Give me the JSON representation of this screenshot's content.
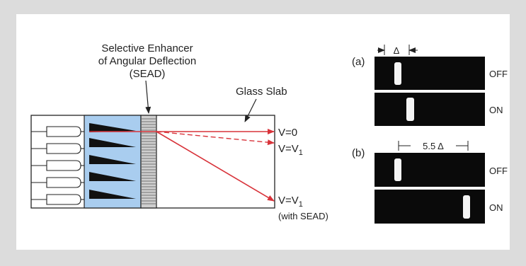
{
  "diagram": {
    "sead_title_line1": "Selective Enhancer",
    "sead_title_line2": "of Angular Deflection",
    "sead_title_line3": "(SEAD)",
    "glass_slab_label": "Glass Slab",
    "v0": "V=0",
    "v1_base": "V=V",
    "v1_sub": "1",
    "v1b_base": "V=V",
    "v1b_sub": "1",
    "with_sead": "(with SEAD)"
  },
  "micrographs": {
    "a_label": "(a)",
    "a_delta": "Δ",
    "a_off": "OFF",
    "a_on": "ON",
    "b_label": "(b)",
    "b_delta": "5.5 Δ",
    "b_off": "OFF",
    "b_on": "ON"
  },
  "colors": {
    "background": "#dcdcdc",
    "panel": "#ffffff",
    "beam": "#d8333a",
    "sead_block": "#a9cdef",
    "grating": "#bdbdbd",
    "image_bg": "#0a0a0a"
  }
}
